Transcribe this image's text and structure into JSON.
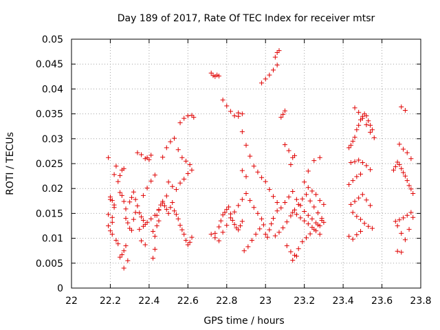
{
  "chart_data": {
    "type": "scatter",
    "title": "Day 189 of 2017, Rate Of TEC Index for receiver mtsr",
    "xlabel": "GPS time / hours",
    "ylabel": "ROTI / TECUs",
    "xlim": [
      22,
      23.8
    ],
    "ylim": [
      0,
      0.05
    ],
    "x_ticks": [
      "22",
      "22.2",
      "22.4",
      "22.6",
      "22.8",
      "23",
      "23.2",
      "23.4",
      "23.6",
      "23.8"
    ],
    "y_ticks": [
      "0",
      "0.005",
      "0.01",
      "0.015",
      "0.02",
      "0.025",
      "0.03",
      "0.035",
      "0.04",
      "0.045",
      "0.05"
    ],
    "grid": true,
    "marker": "+",
    "color": "#e00000",
    "series": [
      {
        "name": "ROTI",
        "x": [
          22.19,
          22.2,
          22.19,
          22.21,
          22.2,
          22.21,
          22.22,
          22.23,
          22.22,
          22.21,
          22.19,
          22.2,
          22.21,
          22.22,
          22.23,
          22.24,
          22.25,
          22.26,
          22.27,
          22.28,
          22.24,
          22.25,
          22.26,
          22.27,
          22.25,
          22.26,
          22.27,
          22.28,
          22.28,
          22.29,
          22.3,
          22.31,
          22.32,
          22.33,
          22.27,
          22.29,
          22.3,
          22.31,
          22.32,
          22.33,
          22.34,
          22.35,
          22.36,
          22.37,
          22.38,
          22.34,
          22.36,
          22.38,
          22.39,
          22.4,
          22.41,
          22.42,
          22.43,
          22.44,
          22.45,
          22.42,
          22.43,
          22.44,
          22.45,
          22.46,
          22.47,
          22.48,
          22.49,
          22.5,
          22.51,
          22.52,
          22.53,
          22.54,
          22.55,
          22.56,
          22.57,
          22.58,
          22.59,
          22.6,
          22.61,
          22.62,
          22.47,
          22.49,
          22.51,
          22.53,
          22.55,
          22.57,
          22.59,
          22.61,
          22.5,
          22.52,
          22.54,
          22.56,
          22.58,
          22.6,
          22.62,
          22.56,
          22.58,
          22.6,
          22.62,
          22.63,
          22.37,
          22.39,
          22.41,
          22.43,
          22.36,
          22.38,
          22.35,
          22.37,
          22.39,
          22.41,
          22.43,
          22.45,
          22.47,
          22.49,
          22.72,
          22.73,
          22.74,
          22.75,
          22.76,
          22.74,
          22.76,
          22.77,
          22.78,
          22.79,
          22.8,
          22.81,
          22.82,
          22.83,
          22.84,
          22.85,
          22.86,
          22.87,
          22.88,
          22.72,
          22.74,
          22.76,
          22.78,
          22.8,
          22.82,
          22.84,
          22.86,
          22.88,
          22.9,
          22.92,
          22.94,
          22.96,
          22.98,
          22.89,
          22.91,
          22.93,
          22.95,
          22.97,
          22.99,
          22.78,
          22.8,
          22.82,
          22.84,
          22.86,
          22.88,
          22.9,
          22.92,
          22.94,
          22.96,
          22.98,
          23.0,
          23.02,
          23.04,
          23.06,
          22.88,
          22.9,
          22.86,
          22.88,
          22.98,
          23.0,
          23.02,
          23.04,
          23.06,
          23.0,
          23.01,
          23.02,
          23.03,
          23.04,
          23.05,
          23.06,
          23.07,
          23.08,
          23.09,
          23.1,
          23.05,
          23.07,
          23.09,
          23.11,
          23.13,
          23.15,
          23.17,
          23.19,
          23.21,
          23.23,
          23.25,
          23.27,
          23.29,
          23.3,
          23.11,
          23.13,
          23.15,
          23.17,
          23.19,
          23.21,
          23.23,
          23.25,
          23.27,
          23.29,
          23.14,
          23.16,
          23.18,
          23.2,
          23.22,
          23.24,
          23.26,
          23.28,
          23.14,
          23.16,
          23.13,
          23.15,
          23.2,
          23.22,
          23.24,
          23.26,
          23.28,
          23.3,
          23.22,
          23.25,
          23.28,
          23.06,
          23.08,
          23.1,
          23.12,
          23.14,
          23.16,
          23.18,
          23.2,
          23.22,
          23.24,
          23.26,
          23.28,
          23.1,
          23.12,
          23.14,
          23.43,
          23.44,
          23.45,
          23.46,
          23.47,
          23.48,
          23.49,
          23.5,
          23.51,
          23.52,
          23.53,
          23.54,
          23.55,
          23.44,
          23.46,
          23.48,
          23.5,
          23.52,
          23.54,
          23.44,
          23.46,
          23.48,
          23.5,
          23.52,
          23.54,
          23.45,
          23.47,
          23.49,
          23.51,
          23.53,
          23.55,
          23.43,
          23.45,
          23.47,
          23.49,
          23.46,
          23.48,
          23.5,
          23.52,
          23.54,
          23.56,
          23.43,
          23.45,
          23.47,
          23.49,
          23.66,
          23.67,
          23.68,
          23.69,
          23.7,
          23.71,
          23.72,
          23.73,
          23.74,
          23.75,
          23.76,
          23.67,
          23.69,
          23.71,
          23.73,
          23.75,
          23.68,
          23.7,
          23.72,
          23.74,
          23.76,
          23.69,
          23.71,
          23.73,
          23.75,
          23.7,
          23.72,
          23.68,
          23.7
        ],
        "y": [
          0.0262,
          0.0178,
          0.0125,
          0.0132,
          0.0115,
          0.0142,
          0.0228,
          0.0245,
          0.0162,
          0.0108,
          0.0148,
          0.0183,
          0.0176,
          0.0167,
          0.0096,
          0.0089,
          0.0062,
          0.0067,
          0.0075,
          0.0085,
          0.0214,
          0.0226,
          0.0237,
          0.024,
          0.0192,
          0.0186,
          0.0174,
          0.0159,
          0.014,
          0.0131,
          0.012,
          0.0116,
          0.0138,
          0.0152,
          0.004,
          0.0055,
          0.0173,
          0.0182,
          0.0193,
          0.0178,
          0.0165,
          0.0151,
          0.0143,
          0.0136,
          0.0128,
          0.0272,
          0.0268,
          0.026,
          0.0262,
          0.0258,
          0.0267,
          0.0114,
          0.0104,
          0.0125,
          0.0135,
          0.006,
          0.0078,
          0.0146,
          0.0156,
          0.0167,
          0.0174,
          0.0165,
          0.0158,
          0.015,
          0.0162,
          0.0172,
          0.0155,
          0.0148,
          0.0139,
          0.0126,
          0.0117,
          0.0108,
          0.0096,
          0.0087,
          0.0092,
          0.0102,
          0.0263,
          0.0282,
          0.0294,
          0.0301,
          0.0278,
          0.0262,
          0.0255,
          0.0248,
          0.0213,
          0.0204,
          0.0198,
          0.0211,
          0.0219,
          0.023,
          0.0237,
          0.0332,
          0.0341,
          0.0346,
          0.0347,
          0.0343,
          0.0186,
          0.0201,
          0.0215,
          0.0227,
          0.0095,
          0.0087,
          0.0118,
          0.0124,
          0.0132,
          0.0139,
          0.0146,
          0.0158,
          0.0171,
          0.0185,
          0.0432,
          0.0427,
          0.0425,
          0.0428,
          0.0426,
          0.011,
          0.0123,
          0.0135,
          0.0147,
          0.0152,
          0.0158,
          0.0163,
          0.0149,
          0.0136,
          0.0128,
          0.0121,
          0.0117,
          0.0125,
          0.0134,
          0.0108,
          0.0101,
          0.0095,
          0.0112,
          0.0126,
          0.0141,
          0.0153,
          0.0166,
          0.0178,
          0.019,
          0.0176,
          0.0162,
          0.015,
          0.0139,
          0.0075,
          0.0083,
          0.0096,
          0.0108,
          0.0119,
          0.0127,
          0.0378,
          0.0366,
          0.0355,
          0.0346,
          0.0352,
          0.0314,
          0.0287,
          0.0265,
          0.0245,
          0.0233,
          0.0222,
          0.0214,
          0.0198,
          0.0184,
          0.0172,
          0.0236,
          0.0224,
          0.0345,
          0.035,
          0.0412,
          0.042,
          0.0428,
          0.0438,
          0.0448,
          0.0108,
          0.0102,
          0.0117,
          0.0129,
          0.014,
          0.0464,
          0.0473,
          0.0477,
          0.0343,
          0.0349,
          0.0356,
          0.0105,
          0.0112,
          0.0121,
          0.0133,
          0.0145,
          0.0157,
          0.0168,
          0.0179,
          0.0188,
          0.0175,
          0.0163,
          0.0151,
          0.014,
          0.0132,
          0.0085,
          0.0073,
          0.0066,
          0.0079,
          0.0093,
          0.0101,
          0.0109,
          0.0118,
          0.0127,
          0.0136,
          0.0152,
          0.0148,
          0.0141,
          0.0135,
          0.0129,
          0.0122,
          0.0115,
          0.0108,
          0.0056,
          0.0064,
          0.0248,
          0.0266,
          0.0213,
          0.0202,
          0.0195,
          0.0188,
          0.0176,
          0.0168,
          0.0235,
          0.0256,
          0.0262,
          0.0155,
          0.0161,
          0.0172,
          0.0183,
          0.0194,
          0.0178,
          0.0166,
          0.0154,
          0.0146,
          0.0139,
          0.0131,
          0.0125,
          0.0288,
          0.0276,
          0.0262,
          0.0282,
          0.0287,
          0.0295,
          0.0303,
          0.0318,
          0.0327,
          0.0338,
          0.0345,
          0.035,
          0.0346,
          0.0336,
          0.0327,
          0.0318,
          0.0252,
          0.0254,
          0.0257,
          0.0252,
          0.0246,
          0.0238,
          0.0168,
          0.0174,
          0.0181,
          0.0188,
          0.0177,
          0.0166,
          0.0152,
          0.0144,
          0.0138,
          0.013,
          0.0124,
          0.012,
          0.0104,
          0.0098,
          0.0107,
          0.0114,
          0.0362,
          0.0353,
          0.0341,
          0.0328,
          0.0313,
          0.0302,
          0.0208,
          0.0216,
          0.0224,
          0.0229,
          0.0237,
          0.0244,
          0.0253,
          0.0248,
          0.024,
          0.0232,
          0.0225,
          0.0216,
          0.0206,
          0.0199,
          0.019,
          0.0134,
          0.0137,
          0.0141,
          0.0146,
          0.0152,
          0.0125,
          0.011,
          0.0097,
          0.0118,
          0.0142,
          0.0289,
          0.0279,
          0.0272,
          0.026,
          0.0364,
          0.0357,
          0.0074,
          0.0072
        ]
      }
    ]
  }
}
